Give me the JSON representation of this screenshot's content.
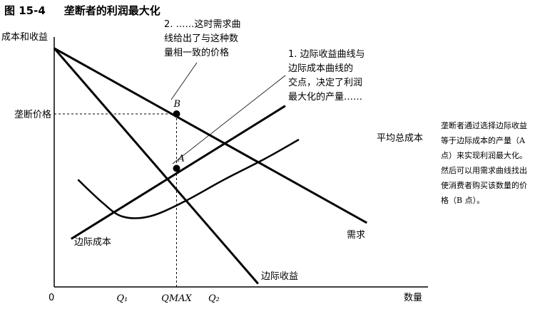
{
  "figure": {
    "number": "图 15-4",
    "title": "垄断者的利润最大化",
    "caption": "垄断者通过选择边际收益等于边际成本的产量（A 点）来实现利润最大化。然后可以用需求曲线找出使消费者购买该数量的价格（B 点）。"
  },
  "chart_data": {
    "type": "line",
    "xlabel": "数量",
    "ylabel": "成本和收益",
    "origin_label": "0",
    "x_ticks": [
      "Q₁",
      "QMAX",
      "Q₂"
    ],
    "x_tick_values": [
      1,
      1.8,
      2.35
    ],
    "y_ticks": [
      "垄断价格"
    ],
    "y_tick_values": [
      5.4
    ],
    "xlim": [
      0,
      5.5
    ],
    "ylim": [
      0,
      7.8
    ],
    "series": [
      {
        "name": "需求",
        "x": [
          0,
          4.6
        ],
        "y": [
          7.45,
          2.0
        ],
        "color": "#000000"
      },
      {
        "name": "边际收益",
        "x": [
          0,
          3.0
        ],
        "y": [
          7.45,
          0.1
        ],
        "color": "#000000"
      },
      {
        "name": "边际成本",
        "x": [
          0.25,
          3.4
        ],
        "y": [
          1.5,
          5.65
        ],
        "color": "#000000"
      },
      {
        "name": "平均总成本",
        "x": [
          0.35,
          0.7,
          1.0,
          1.4,
          1.9,
          2.5,
          3.1,
          3.6
        ],
        "y": [
          3.35,
          2.65,
          2.2,
          2.2,
          2.65,
          3.35,
          4.0,
          4.6
        ],
        "color": "#000000"
      }
    ],
    "points": [
      {
        "label": "B",
        "x": 1.8,
        "y": 5.4
      },
      {
        "label": "A",
        "x": 1.8,
        "y": 3.7
      }
    ],
    "annotations": [
      "2. ……这时需求曲线给出了与这种数量相一致的价格",
      "1. 边际收益曲线与边际成本曲线的交点，决定了利润最大化的产量……"
    ]
  }
}
